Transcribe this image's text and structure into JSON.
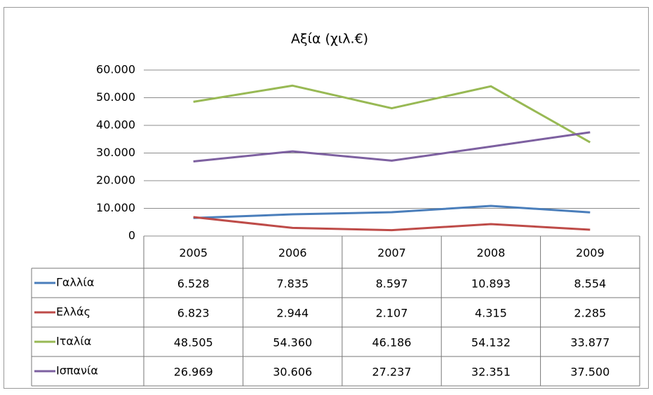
{
  "chart_data": {
    "type": "line",
    "title": "Αξία (χιλ.€)",
    "categories": [
      "2005",
      "2006",
      "2007",
      "2008",
      "2009"
    ],
    "series": [
      {
        "name": "Γαλλία",
        "color": "#4a7ebb",
        "values": [
          6528,
          7835,
          8597,
          10893,
          8554
        ],
        "value_labels": [
          "6.528",
          "7.835",
          "8.597",
          "10.893",
          "8.554"
        ]
      },
      {
        "name": "Ελλάς",
        "color": "#be4b48",
        "values": [
          6823,
          2944,
          2107,
          4315,
          2285
        ],
        "value_labels": [
          "6.823",
          "2.944",
          "2.107",
          "4.315",
          "2.285"
        ]
      },
      {
        "name": "Ιταλία",
        "color": "#98b954",
        "values": [
          48505,
          54360,
          46186,
          54132,
          33877
        ],
        "value_labels": [
          "48.505",
          "54.360",
          "46.186",
          "54.132",
          "33.877"
        ]
      },
      {
        "name": "Ισπανία",
        "color": "#7d60a0",
        "values": [
          26969,
          30606,
          27237,
          32351,
          37500
        ],
        "value_labels": [
          "26.969",
          "30.606",
          "27.237",
          "32.351",
          "37.500"
        ]
      }
    ],
    "ylim": [
      0,
      60000
    ],
    "yticks": [
      0,
      {
        "value": 10000,
        "label": "10.000"
      },
      {
        "value": 20000,
        "label": "20.000"
      },
      {
        "value": 30000,
        "label": "30.000"
      },
      {
        "value": 40000,
        "label": "40.000"
      },
      {
        "value": 50000,
        "label": "50.000"
      },
      {
        "value": 60000,
        "label": "60.000"
      }
    ],
    "grid": true
  }
}
